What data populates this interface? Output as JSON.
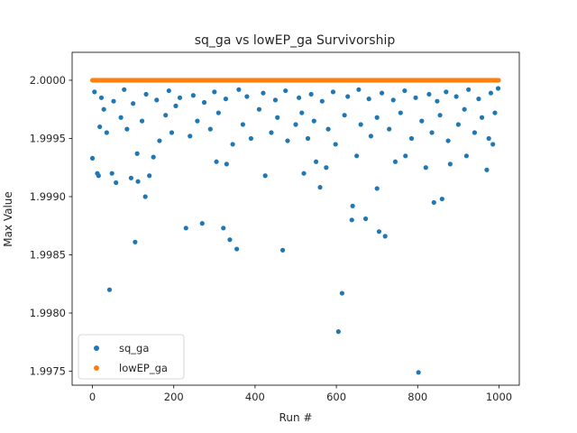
{
  "chart_data": {
    "type": "scatter",
    "title": "sq_ga vs lowEP_ga Survivorship",
    "xlabel": "Run #",
    "ylabel": "Max Value",
    "xlim": [
      -50,
      1050
    ],
    "ylim": [
      1.99738,
      2.00024
    ],
    "x_ticks": [
      0,
      200,
      400,
      600,
      800,
      1000
    ],
    "y_ticks": [
      1.9975,
      1.998,
      1.9985,
      1.999,
      1.9995,
      2.0
    ],
    "x_tick_labels": [
      "0",
      "200",
      "400",
      "600",
      "800",
      "1000"
    ],
    "y_tick_labels": [
      "1.9975",
      "1.9980",
      "1.9985",
      "1.9990",
      "1.9995",
      "2.0000"
    ],
    "grid": false,
    "legend_position": "lower-left",
    "series": [
      {
        "name": "sq_ga",
        "color": "#1f77b4",
        "points": [
          [
            0,
            1.99933
          ],
          [
            12,
            1.9992
          ],
          [
            15,
            1.99918
          ],
          [
            42,
            1.9982
          ],
          [
            48,
            1.9992
          ],
          [
            58,
            1.99912
          ],
          [
            95,
            1.99916
          ],
          [
            105,
            1.99861
          ],
          [
            112,
            1.99913
          ],
          [
            130,
            1.999
          ],
          [
            140,
            1.99918
          ],
          [
            230,
            1.99873
          ],
          [
            270,
            1.99877
          ],
          [
            322,
            1.99873
          ],
          [
            338,
            1.99863
          ],
          [
            355,
            1.99855
          ],
          [
            425,
            1.99918
          ],
          [
            468,
            1.99854
          ],
          [
            520,
            1.9992
          ],
          [
            560,
            1.99908
          ],
          [
            605,
            1.99784
          ],
          [
            614,
            1.99817
          ],
          [
            638,
            1.9988
          ],
          [
            640,
            1.99892
          ],
          [
            672,
            1.99881
          ],
          [
            705,
            1.9987
          ],
          [
            720,
            1.99866
          ],
          [
            700,
            1.99907
          ],
          [
            802,
            1.99749
          ],
          [
            840,
            1.99895
          ],
          [
            860,
            1.99898
          ],
          [
            970,
            1.99923
          ],
          [
            110,
            1.99937
          ],
          [
            150,
            1.99934
          ],
          [
            305,
            1.9993
          ],
          [
            330,
            1.99928
          ],
          [
            550,
            1.9993
          ],
          [
            575,
            1.99925
          ],
          [
            650,
            1.99935
          ],
          [
            745,
            1.9993
          ],
          [
            770,
            1.99935
          ],
          [
            820,
            1.99925
          ],
          [
            880,
            1.99928
          ],
          [
            920,
            1.99935
          ],
          [
            985,
            1.99945
          ],
          [
            5,
            1.9999
          ],
          [
            18,
            1.9996
          ],
          [
            28,
            1.99975
          ],
          [
            35,
            1.99955
          ],
          [
            70,
            1.99968
          ],
          [
            85,
            1.99958
          ],
          [
            122,
            1.99965
          ],
          [
            165,
            1.99948
          ],
          [
            180,
            1.9997
          ],
          [
            195,
            1.99955
          ],
          [
            205,
            1.99978
          ],
          [
            240,
            1.99952
          ],
          [
            258,
            1.99965
          ],
          [
            290,
            1.99958
          ],
          [
            310,
            1.99972
          ],
          [
            345,
            1.99945
          ],
          [
            370,
            1.99962
          ],
          [
            390,
            1.9995
          ],
          [
            410,
            1.99975
          ],
          [
            440,
            1.99955
          ],
          [
            455,
            1.99968
          ],
          [
            480,
            1.99948
          ],
          [
            500,
            1.99962
          ],
          [
            515,
            1.99972
          ],
          [
            530,
            1.9995
          ],
          [
            545,
            1.99965
          ],
          [
            580,
            1.99958
          ],
          [
            598,
            1.99945
          ],
          [
            620,
            1.9997
          ],
          [
            660,
            1.99962
          ],
          [
            685,
            1.99952
          ],
          [
            700,
            1.99968
          ],
          [
            730,
            1.99958
          ],
          [
            758,
            1.99972
          ],
          [
            785,
            1.9995
          ],
          [
            810,
            1.99965
          ],
          [
            835,
            1.99955
          ],
          [
            855,
            1.9997
          ],
          [
            875,
            1.99948
          ],
          [
            900,
            1.99962
          ],
          [
            915,
            1.99975
          ],
          [
            940,
            1.99955
          ],
          [
            958,
            1.99968
          ],
          [
            975,
            1.9995
          ],
          [
            990,
            1.99972
          ],
          [
            22,
            1.99985
          ],
          [
            52,
            1.99982
          ],
          [
            78,
            1.99992
          ],
          [
            100,
            1.9998
          ],
          [
            132,
            1.99988
          ],
          [
            158,
            1.99983
          ],
          [
            188,
            1.99991
          ],
          [
            215,
            1.99985
          ],
          [
            248,
            1.99987
          ],
          [
            275,
            1.99981
          ],
          [
            300,
            1.9999
          ],
          [
            328,
            1.99984
          ],
          [
            360,
            1.99992
          ],
          [
            380,
            1.99986
          ],
          [
            420,
            1.99989
          ],
          [
            450,
            1.99983
          ],
          [
            475,
            1.99991
          ],
          [
            508,
            1.99985
          ],
          [
            538,
            1.99988
          ],
          [
            565,
            1.99982
          ],
          [
            592,
            1.9999
          ],
          [
            628,
            1.99986
          ],
          [
            655,
            1.99992
          ],
          [
            680,
            1.99984
          ],
          [
            712,
            1.99989
          ],
          [
            740,
            1.99983
          ],
          [
            768,
            1.99991
          ],
          [
            795,
            1.99985
          ],
          [
            828,
            1.99988
          ],
          [
            848,
            1.99982
          ],
          [
            870,
            1.9999
          ],
          [
            895,
            1.99986
          ],
          [
            925,
            1.99992
          ],
          [
            950,
            1.99984
          ],
          [
            980,
            1.99989
          ],
          [
            998,
            1.99993
          ]
        ]
      },
      {
        "name": "lowEP_ga",
        "color": "#ff7f0e",
        "constant_y": 2.0,
        "x_from": 0,
        "x_to": 999
      }
    ]
  }
}
